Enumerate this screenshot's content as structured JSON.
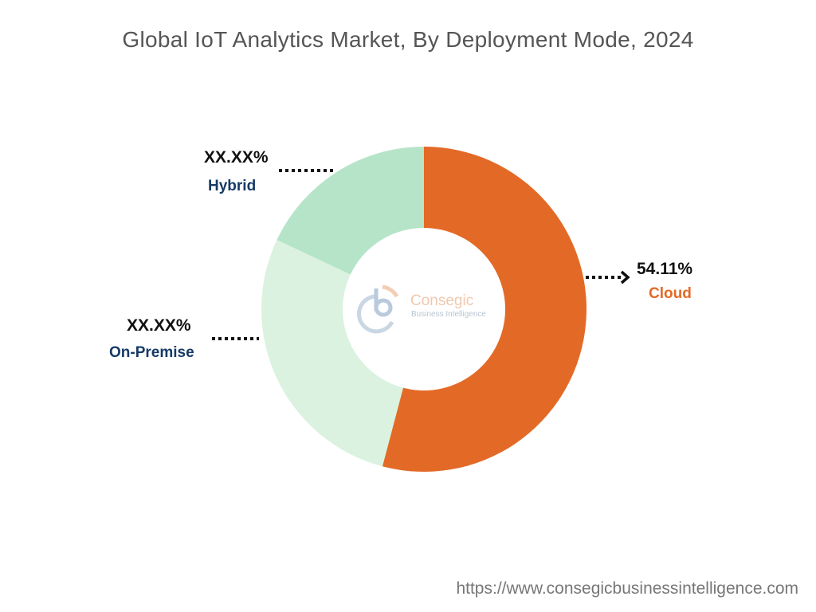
{
  "chart_data": {
    "type": "pie",
    "title": "Global IoT Analytics Market, By Deployment Mode, 2024",
    "donut": true,
    "slices": [
      {
        "name": "Cloud",
        "value": 54.11,
        "label": "54.11%",
        "color": "#E36A26",
        "label_color": "#E36A26"
      },
      {
        "name": "On-Premise",
        "value": 27.9,
        "label": "XX.XX%",
        "color": "#DAF2DF",
        "label_color": "#163A66"
      },
      {
        "name": "Hybrid",
        "value": 17.99,
        "label": "XX.XX%",
        "color": "#B6E4C8",
        "label_color": "#163A66"
      }
    ]
  },
  "watermark": {
    "brand": "Consegic",
    "tagline": "Business Intelligence"
  },
  "footer_url": "https://www.consegicbusinessintelligence.com"
}
